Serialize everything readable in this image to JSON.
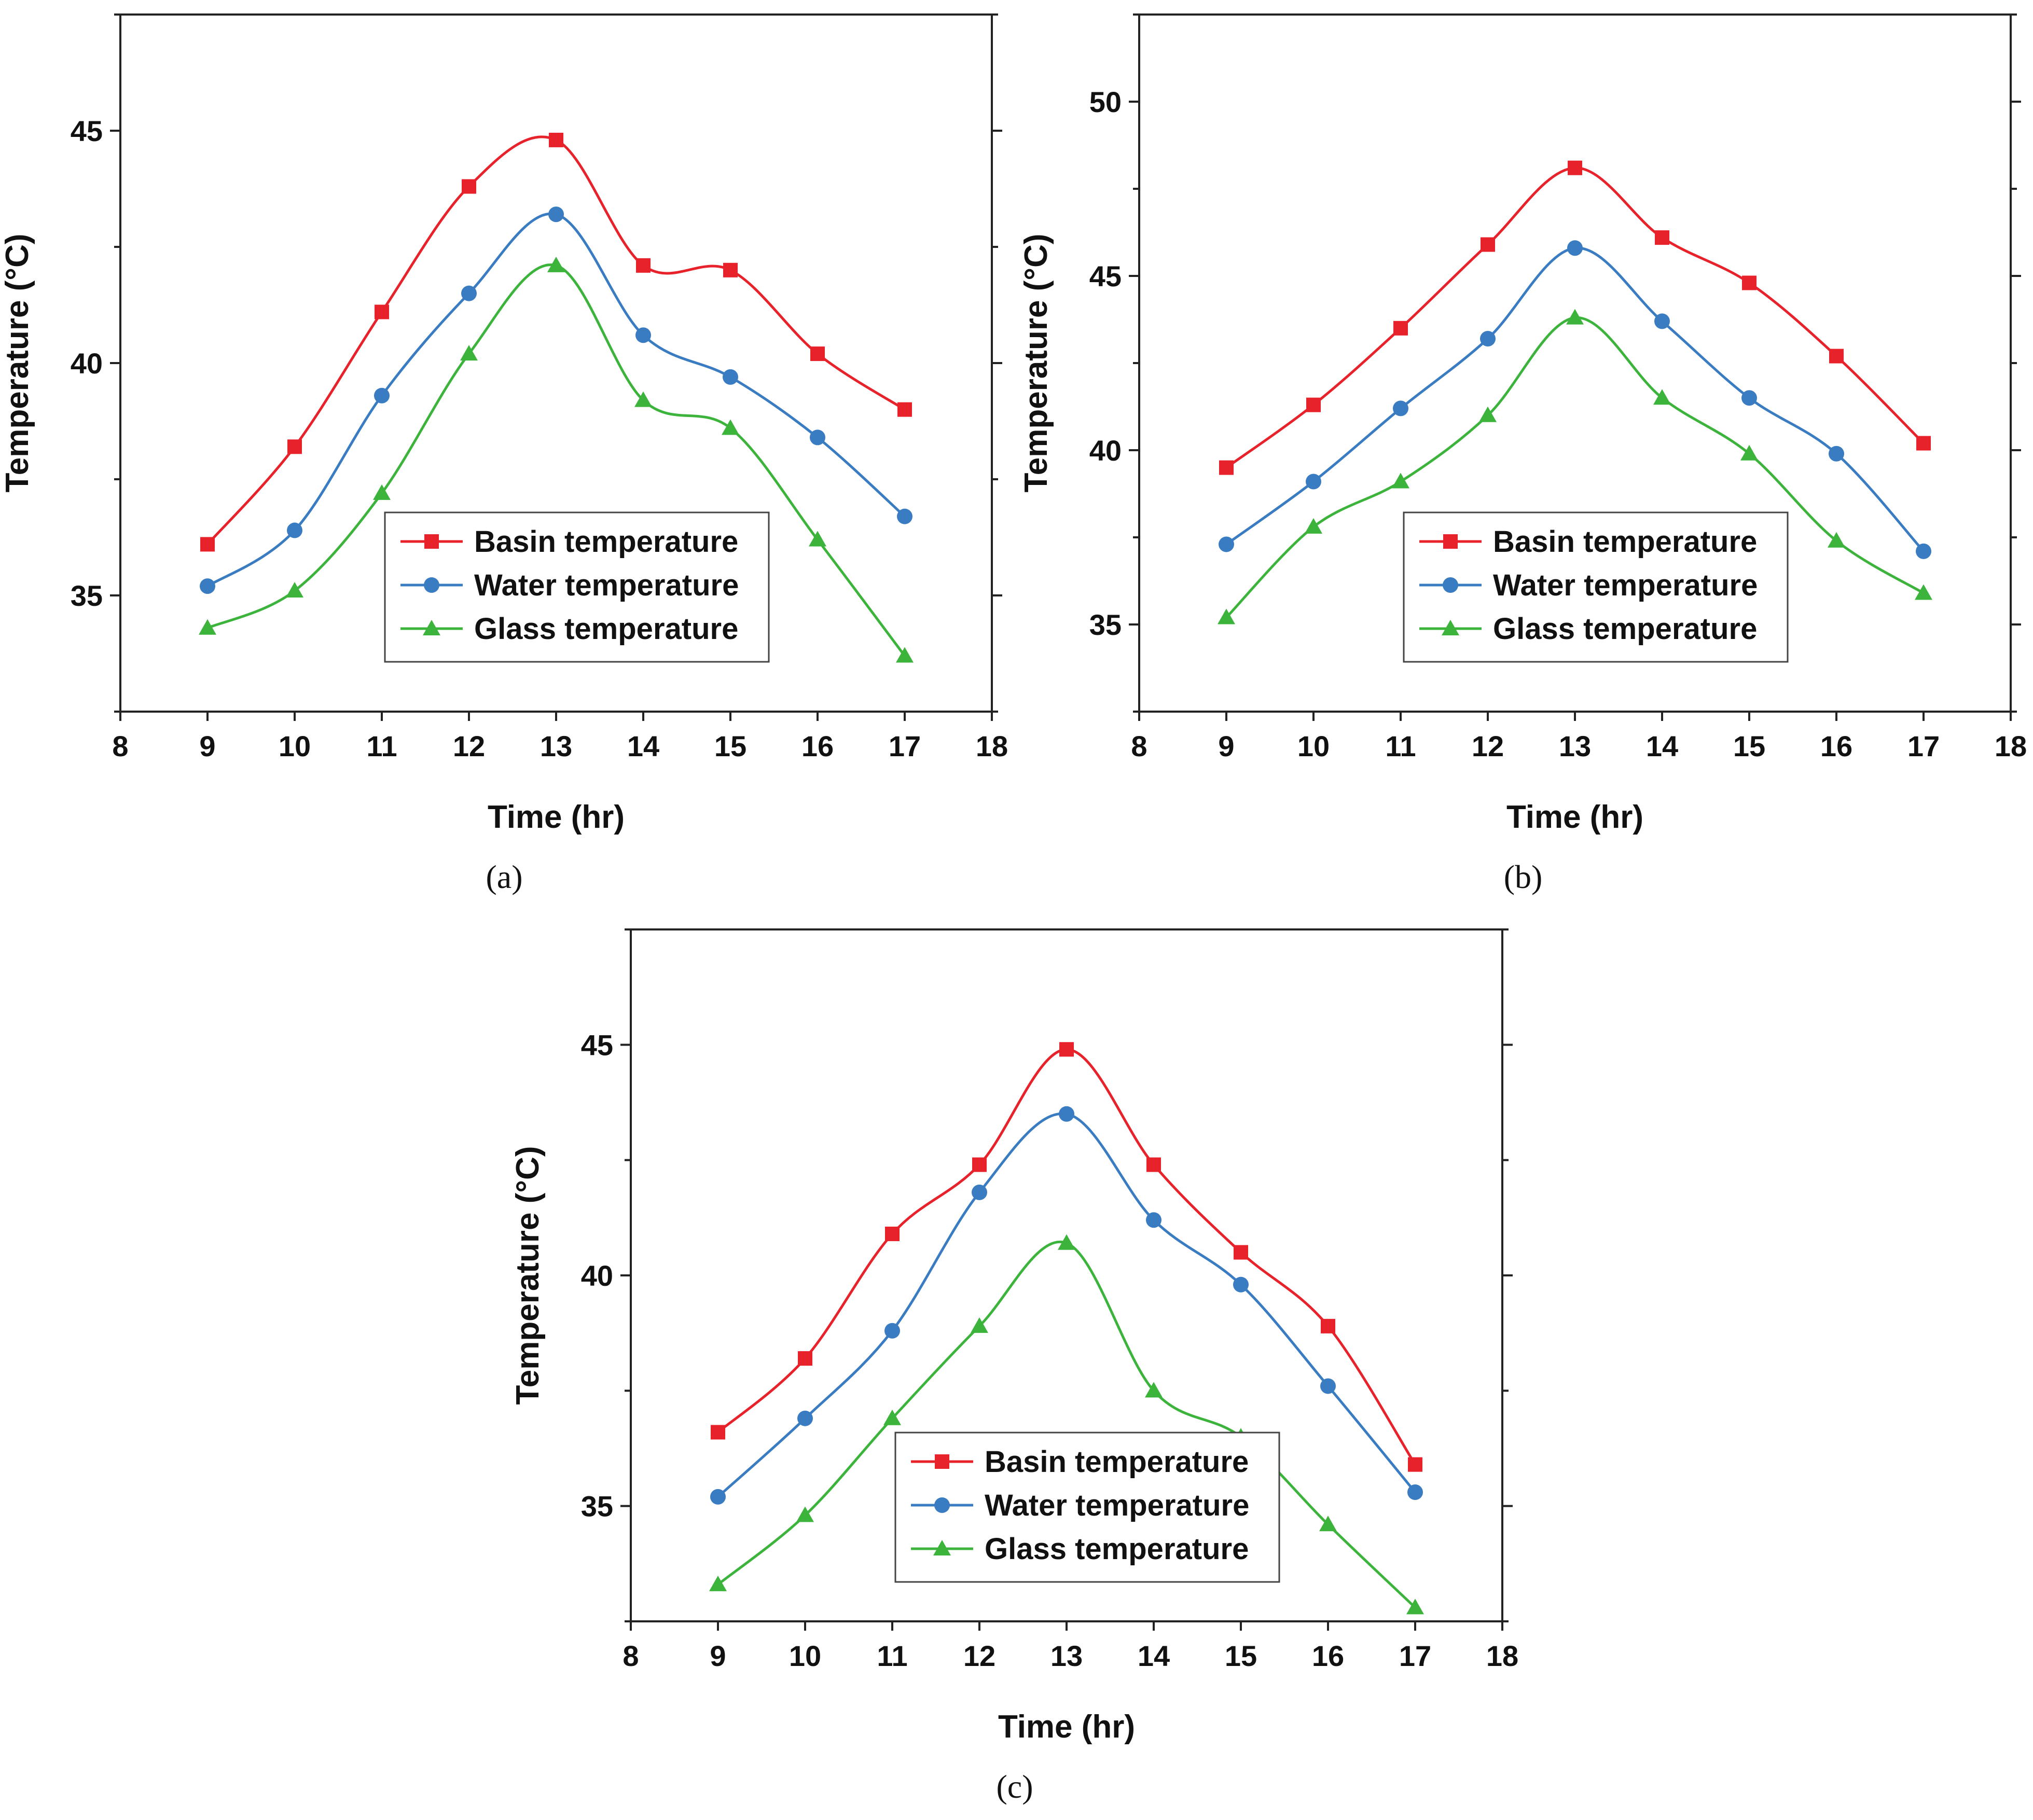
{
  "chart_data": [
    {
      "type": "line",
      "panel_label": "(a)",
      "xlabel": "Time (hr)",
      "ylabel": "Temperature (°C)",
      "xlim": [
        8,
        18
      ],
      "ylim": [
        32.5,
        47.5
      ],
      "xticks": [
        8,
        9,
        10,
        11,
        12,
        13,
        14,
        15,
        16,
        17,
        18
      ],
      "yticks": [
        35,
        40,
        45
      ],
      "x": [
        9,
        10,
        11,
        12,
        13,
        14,
        15,
        16,
        17
      ],
      "legend_position": "bottom-center",
      "series": [
        {
          "name": "Basin temperature",
          "color": "#e8222a",
          "marker": "square",
          "values": [
            36.1,
            38.2,
            41.1,
            43.8,
            44.8,
            42.1,
            42.0,
            40.2,
            39.0
          ]
        },
        {
          "name": "Water temperature",
          "color": "#3a7cc2",
          "marker": "circle",
          "values": [
            35.2,
            36.4,
            39.3,
            41.5,
            43.2,
            40.6,
            39.7,
            38.4,
            36.7
          ]
        },
        {
          "name": "Glass temperature",
          "color": "#3cb43c",
          "marker": "triangle",
          "values": [
            34.3,
            35.1,
            37.2,
            40.2,
            42.1,
            39.2,
            38.6,
            36.2,
            33.7
          ]
        }
      ]
    },
    {
      "type": "line",
      "panel_label": "(b)",
      "xlabel": "Time (hr)",
      "ylabel": "Temperature (°C)",
      "xlim": [
        8,
        18
      ],
      "ylim": [
        32.5,
        52.5
      ],
      "xticks": [
        8,
        9,
        10,
        11,
        12,
        13,
        14,
        15,
        16,
        17,
        18
      ],
      "yticks": [
        35,
        40,
        45,
        50
      ],
      "x": [
        9,
        10,
        11,
        12,
        13,
        14,
        15,
        16,
        17
      ],
      "legend_position": "bottom-center",
      "series": [
        {
          "name": "Basin temperature",
          "color": "#e8222a",
          "marker": "square",
          "values": [
            39.5,
            41.3,
            43.5,
            45.9,
            48.1,
            46.1,
            44.8,
            42.7,
            40.2
          ]
        },
        {
          "name": "Water temperature",
          "color": "#3a7cc2",
          "marker": "circle",
          "values": [
            37.3,
            39.1,
            41.2,
            43.2,
            45.8,
            43.7,
            41.5,
            39.9,
            37.1
          ]
        },
        {
          "name": "Glass temperature",
          "color": "#3cb43c",
          "marker": "triangle",
          "values": [
            35.2,
            37.8,
            39.1,
            41.0,
            43.8,
            41.5,
            39.9,
            37.4,
            35.9
          ]
        }
      ]
    },
    {
      "type": "line",
      "panel_label": "(c)",
      "xlabel": "Time (hr)",
      "ylabel": "Temperature (°C)",
      "xlim": [
        8,
        18
      ],
      "ylim": [
        32.5,
        47.5
      ],
      "xticks": [
        8,
        9,
        10,
        11,
        12,
        13,
        14,
        15,
        16,
        17,
        18
      ],
      "yticks": [
        35,
        40,
        45
      ],
      "x": [
        9,
        10,
        11,
        12,
        13,
        14,
        15,
        16,
        17
      ],
      "legend_position": "bottom-center",
      "series": [
        {
          "name": "Basin temperature",
          "color": "#e8222a",
          "marker": "square",
          "values": [
            36.6,
            38.2,
            40.9,
            42.4,
            44.9,
            42.4,
            40.5,
            38.9,
            35.9
          ]
        },
        {
          "name": "Water temperature",
          "color": "#3a7cc2",
          "marker": "circle",
          "values": [
            35.2,
            36.9,
            38.8,
            41.8,
            43.5,
            41.2,
            39.8,
            37.6,
            35.3
          ]
        },
        {
          "name": "Glass temperature",
          "color": "#3cb43c",
          "marker": "triangle",
          "values": [
            33.3,
            34.8,
            36.9,
            38.9,
            40.7,
            37.5,
            36.5,
            34.6,
            32.8
          ]
        }
      ]
    }
  ]
}
